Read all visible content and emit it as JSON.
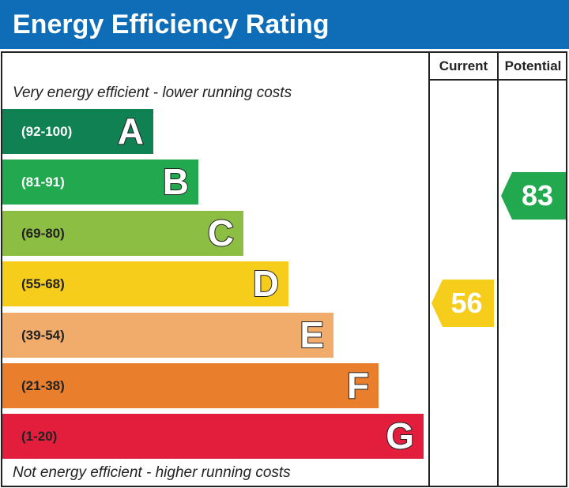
{
  "header": {
    "title": "Energy Efficiency Rating"
  },
  "columns": {
    "current": "Current",
    "potential": "Potential"
  },
  "notes": {
    "top": "Very energy efficient - lower running costs",
    "bottom": "Not energy efficient - higher running costs"
  },
  "chart_data": {
    "type": "bar",
    "title": "Energy Efficiency Rating",
    "categories": [
      "A",
      "B",
      "C",
      "D",
      "E",
      "F",
      "G"
    ],
    "ranges": [
      "(92-100)",
      "(81-91)",
      "(69-80)",
      "(55-68)",
      "(39-54)",
      "(21-38)",
      "(1-20)"
    ],
    "colors": [
      "#0f8152",
      "#22a94f",
      "#8cbe44",
      "#f6cd1b",
      "#f1ac6c",
      "#e97f2c",
      "#e31d3c"
    ],
    "range_colors": [
      "#ffffff",
      "#ffffff",
      "#222222",
      "#222222",
      "#222222",
      "#222222",
      "#222222"
    ],
    "current": {
      "value": 56,
      "band": "D",
      "color": "#f6cd1b"
    },
    "potential": {
      "value": 83,
      "band": "B",
      "color": "#22a94f"
    }
  }
}
